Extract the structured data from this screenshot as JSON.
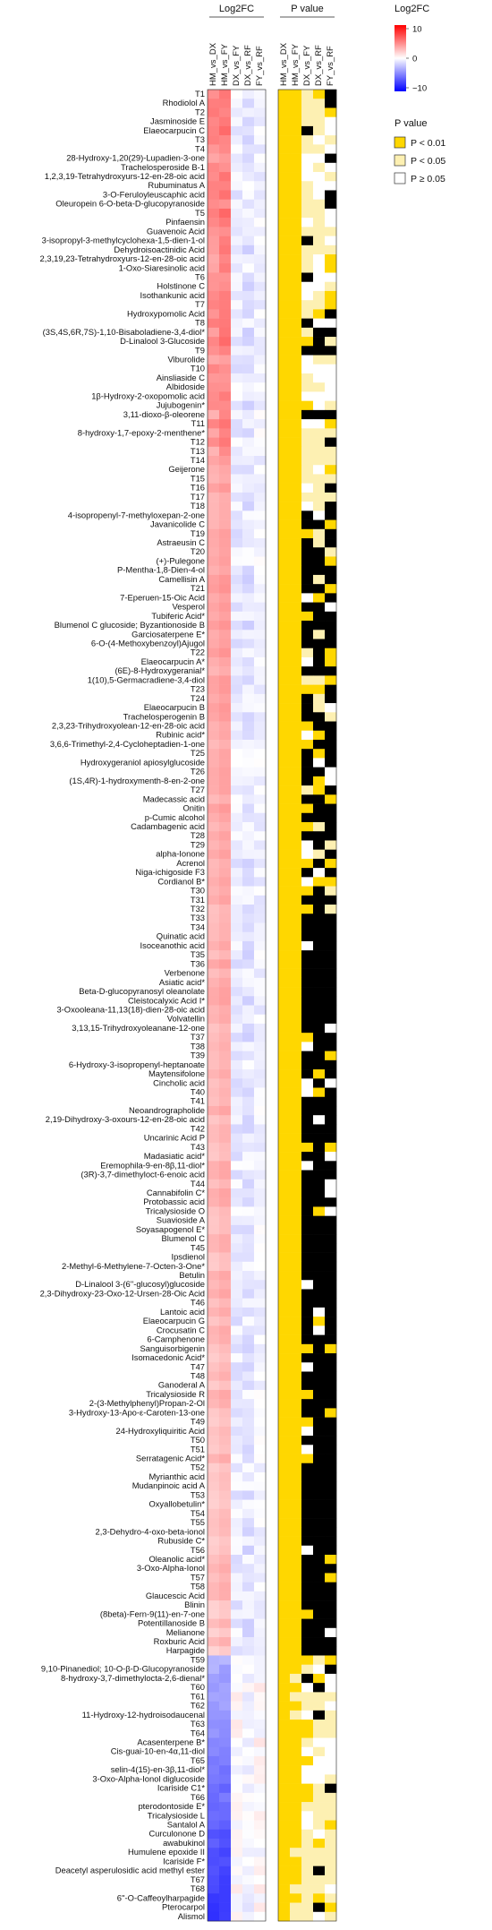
{
  "chart_data": {
    "type": "heatmap",
    "panels": [
      {
        "title": "Log2FC",
        "columns": [
          "HM_vs_DX",
          "HM_vs_FY",
          "DX_vs_FY",
          "DX_vs_RF",
          "FY_vs_RF"
        ]
      },
      {
        "title": "P value",
        "columns": [
          "HM_vs_DX",
          "HM_vs_FY",
          "DX_vs_FY",
          "DX_vs_RF",
          "FY_vs_RF"
        ]
      }
    ],
    "rows": [
      "T1",
      "Rhodiolol A",
      "T2",
      "Jasminoside E",
      "Elaeocarpucin C",
      "T3",
      "T4",
      "28-Hydroxy-1,20(29)-Lupadien-3-one",
      "Trachelosperoside B-1",
      "1,2,3,19-Tetrahydroxyurs-12-en-28-oic acid",
      "Rubuminatus A",
      "3-O-Feruloyleuscaphic acid",
      "Oleuropein 6-O-beta-D-glucopyranoside",
      "T5",
      "Pinfaensin",
      "Guavenoic Acid",
      "3-isopropyl-3-methylcyclohexa-1,5-dien-1-ol",
      "Dehydroisoactinidic Acid",
      "2,3,19,23-Tetrahydroxyurs-12-en-28-oic acid",
      "1-Oxo-Siaresinolic acid",
      "T6",
      "Holstinone C",
      "Isothankunic acid",
      "T7",
      "Hydroxypomolic Acid",
      "T8",
      "(3S,4S,6R,7S)-1,10-Bisaboladiene-3,4-diol*",
      "D-Linalool 3-Glucoside",
      "T9",
      "Viburolide",
      "T10",
      "Ainsliaside C",
      "Albidoside",
      "1β-Hydroxy-2-oxopomolic acid",
      "Jujubogenin*",
      "3,11-dioxo-β-oleorene",
      "T11",
      "8-hydroxy-1,7-epoxy-2-menthene*",
      "T12",
      "T13",
      "T14",
      "Geijerone",
      "T15",
      "T16",
      "T17",
      "T18",
      "4-isopropenyl-7-methyloxepan-2-one",
      "Javanicolide C",
      "T19",
      "Astraeusin C",
      "T20",
      "(+)-Pulegone",
      "P-Mentha-1,8-Dien-4-ol",
      "Camellisin A",
      "T21",
      "7-Eperuen-15-Oic Acid",
      "Vesperol",
      "Tubiferic Acid*",
      "Blumenol C glucoside; Byzantionoside B",
      "Garciosaterpene E*",
      "6-O-(4-Methoxybenzoyl)Ajugol",
      "T22",
      "Elaeocarpucin A*",
      "(6E)-8-Hydroxygeranial*",
      "1(10),5-Germacradiene-3,4-diol",
      "T23",
      "T24",
      "Elaeocarpucin B",
      "Trachelosperogenin B",
      "2,3,23-Trihydroxyolean-12-en-28-oic acid",
      "Rubinic acid*",
      "3,6,6-Trimethyl-2,4-Cycloheptadien-1-one",
      "T25",
      "Hydroxygeraniol apiosylglucoside",
      "T26",
      "(1S,4R)-1-hydroxymenth-8-en-2-one",
      "T27",
      "Madecassic acid",
      "Onitin",
      "p-Cumic alcohol",
      "Cadambagenic acid",
      "T28",
      "T29",
      "alpha-Ionone",
      "Acrenol",
      "Niga-ichigoside F3",
      "Cordianol B*",
      "T30",
      "T31",
      "T32",
      "T33",
      "T34",
      "Quinatic acid",
      "Isoceanothic acid",
      "T35",
      "T36",
      "Verbenone",
      "Asiatic acid*",
      "Beta-D-glucopyranosyl oleanolate",
      "Cleistocalyxic Acid I*",
      "3-Oxooleana-11,13(18)-dien-28-oic acid",
      "Volvatellin",
      "3,13,15-Trihydroxyoleanane-12-one",
      "T37",
      "T38",
      "T39",
      "6-Hydroxy-3-isopropenyl-heptanoate",
      "Maytensifolone",
      "Cincholic acid",
      "T40",
      "T41",
      "Neoandrographolide",
      "2,19-Dihydroxy-3-oxours-12-en-28-oic acid",
      "T42",
      "Uncarinic Acid P",
      "T43",
      "Madasiatic acid*",
      "Eremophila-9-en-8β,11-diol*",
      "(3R)-3,7-dimethyloct-6-enoic acid",
      "T44",
      "Cannabifolin C*",
      "Protobassic acid",
      "Tricalysioside O",
      "Suavioside A",
      "Soyasapogenol E*",
      "Blumenol C",
      "T45",
      "Ipsdienol",
      "2-Methyl-6-Methylene-7-Octen-3-One*",
      "Betulin",
      "D-Linalool 3-(6''-glucosyl)glucoside",
      "2,3-Dihydroxy-23-Oxo-12-Ursen-28-Oic Acid",
      "T46",
      "Lantoic acid",
      "Elaeocarpucin G",
      "Crocusatin C",
      "6-Camphenone",
      "Sanguisorbigenin",
      "Isomacedonic Acid*",
      "T47",
      "T48",
      "Ganoderal A",
      "Tricalysioside R",
      "2-(3-Methylphenyl)Propan-2-Ol",
      "3-Hydroxy-13-Apo-ε-Caroten-13-one",
      "T49",
      "24-Hydroxyliquiritic Acid",
      "T50",
      "T51",
      "Serratagenic Acid*",
      "T52",
      "Myrianthic acid",
      "Mudanpinoic acid A",
      "T53",
      "Oxyallobetulin*",
      "T54",
      "T55",
      "2,3-Dehydro-4-oxo-beta-ionol",
      "Rubuside C*",
      "T56",
      "Oleanolic acid*",
      "3-Oxo-Alpha-Ionol",
      "T57",
      "T58",
      "Glaucescic Acid",
      "Blinin",
      "(8beta)-Fern-9(11)-en-7-one",
      "Potentillanoside B",
      "Melianone",
      "Roxburic Acid",
      "Harpagide",
      "T59",
      "9,10-Pinanediol; 10-O-β-D-Glucopyranoside",
      "8-hydroxy-3,7-dimethylocta-2,6-dienal*",
      "T60",
      "T61",
      "T62",
      "11-Hydroxy-12-hydroisodaucenal",
      "T63",
      "T64",
      "Acasenterpene B*",
      "Cis-guai-10-en-4α,11-diol",
      "T65",
      "selin-4(15)-en-3β,11-diol*",
      "3-Oxo-Alpha-Ionol diglucoside",
      "Icariside C1*",
      "T66",
      "pterodontoside E*",
      "Tricalysioside L",
      "Santalol A",
      "Curculonone D",
      "awabukinol",
      "Humulene epoxide II",
      "Icariside F*",
      "Deacetyl asperulosidic acid methyl ester",
      "T67",
      "T68",
      "6''-O-Caffeoylharpagide",
      "Pterocarpol",
      "Alismol"
    ],
    "log2fc_colorbar": {
      "title": "Log2FC",
      "colors": [
        "#0000ff",
        "#ffffff",
        "#ff0000"
      ],
      "ticks": [
        "10",
        "0",
        "−10"
      ]
    },
    "pvalue_legend": {
      "title": "P value",
      "items": [
        {
          "label": "P < 0.01",
          "color": "#ffd700"
        },
        {
          "label": "P < 0.05",
          "color": "#fdf0b2"
        },
        {
          "label": "P ≥ 0.05",
          "color": "#ffffff"
        }
      ]
    },
    "black_cell_color": "#000000"
  }
}
